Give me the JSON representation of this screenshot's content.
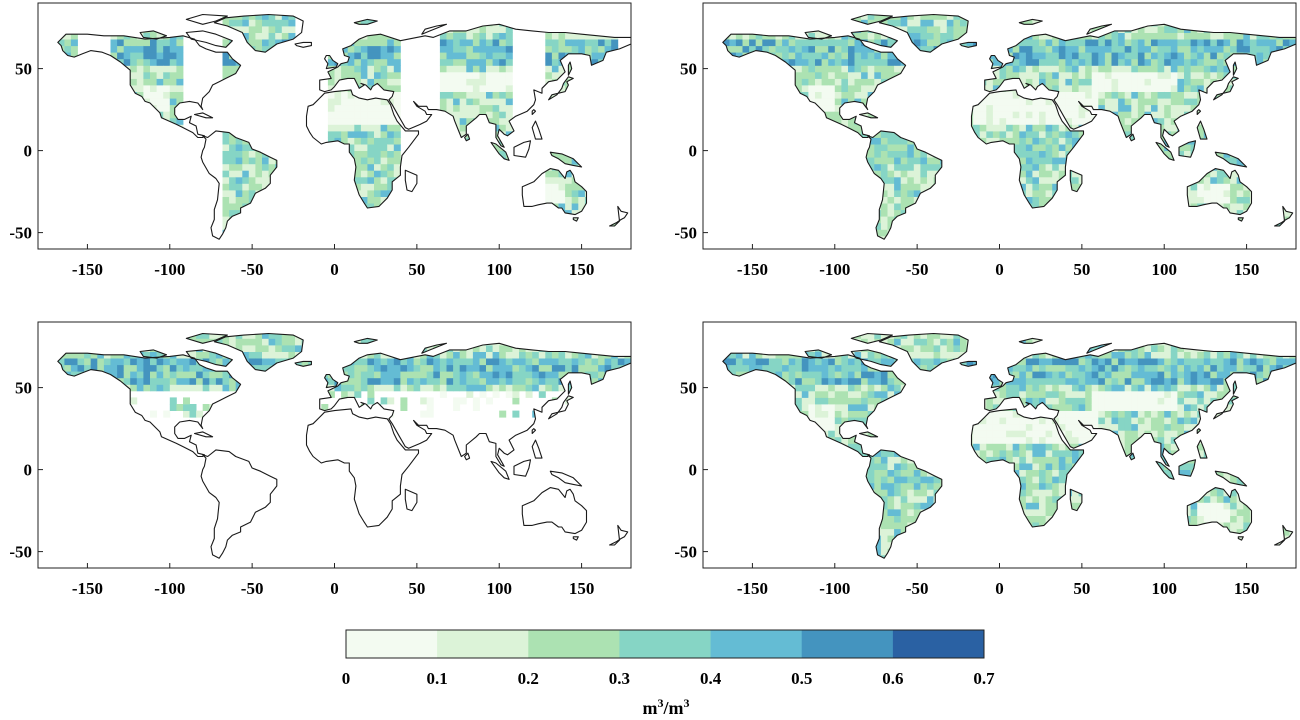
{
  "figure": {
    "panels": [
      {
        "id": "top-left"
      },
      {
        "id": "top-right"
      },
      {
        "id": "bottom-left"
      },
      {
        "id": "bottom-right"
      }
    ],
    "x_ticks": [
      "-150",
      "-100",
      "-50",
      "0",
      "50",
      "100",
      "150"
    ],
    "y_ticks": [
      "50",
      "0",
      "-50"
    ]
  },
  "chart_data": [
    {
      "type": "heatmap",
      "panel": "top-left",
      "x_range": [
        -180,
        180
      ],
      "y_range": [
        -60,
        90
      ],
      "x_ticks": [
        -150,
        -100,
        -50,
        0,
        50,
        100,
        150
      ],
      "y_ticks": [
        -50,
        0,
        50
      ],
      "grid": false,
      "coverage": "partial swath coverage"
    },
    {
      "type": "heatmap",
      "panel": "top-right",
      "x_range": [
        -180,
        180
      ],
      "y_range": [
        -60,
        90
      ],
      "x_ticks": [
        -150,
        -100,
        -50,
        0,
        50,
        100,
        150
      ],
      "y_ticks": [
        -50,
        0,
        50
      ],
      "grid": false,
      "coverage": "full global land"
    },
    {
      "type": "heatmap",
      "panel": "bottom-left",
      "x_range": [
        -180,
        180
      ],
      "y_range": [
        -60,
        90
      ],
      "x_ticks": [
        -150,
        -100,
        -50,
        0,
        50,
        100,
        150
      ],
      "y_ticks": [
        -50,
        0,
        50
      ],
      "grid": false,
      "coverage": "mostly northern high latitudes"
    },
    {
      "type": "heatmap",
      "panel": "bottom-right",
      "x_range": [
        -180,
        180
      ],
      "y_range": [
        -60,
        90
      ],
      "x_ticks": [
        -150,
        -100,
        -50,
        0,
        50,
        100,
        150
      ],
      "y_ticks": [
        -50,
        0,
        50
      ],
      "grid": false,
      "coverage": "full global land"
    }
  ],
  "colorbar": {
    "ticks": [
      "0",
      "0.1",
      "0.2",
      "0.3",
      "0.4",
      "0.5",
      "0.6",
      "0.7"
    ],
    "colors": [
      "#f3fbf1",
      "#dcf3d8",
      "#ace2b2",
      "#86d5c5",
      "#64bcd4",
      "#4494bf",
      "#2a61a3"
    ],
    "unit_base": "m",
    "unit_sup1": "3",
    "unit_sep": "/m",
    "unit_sup2": "3"
  }
}
